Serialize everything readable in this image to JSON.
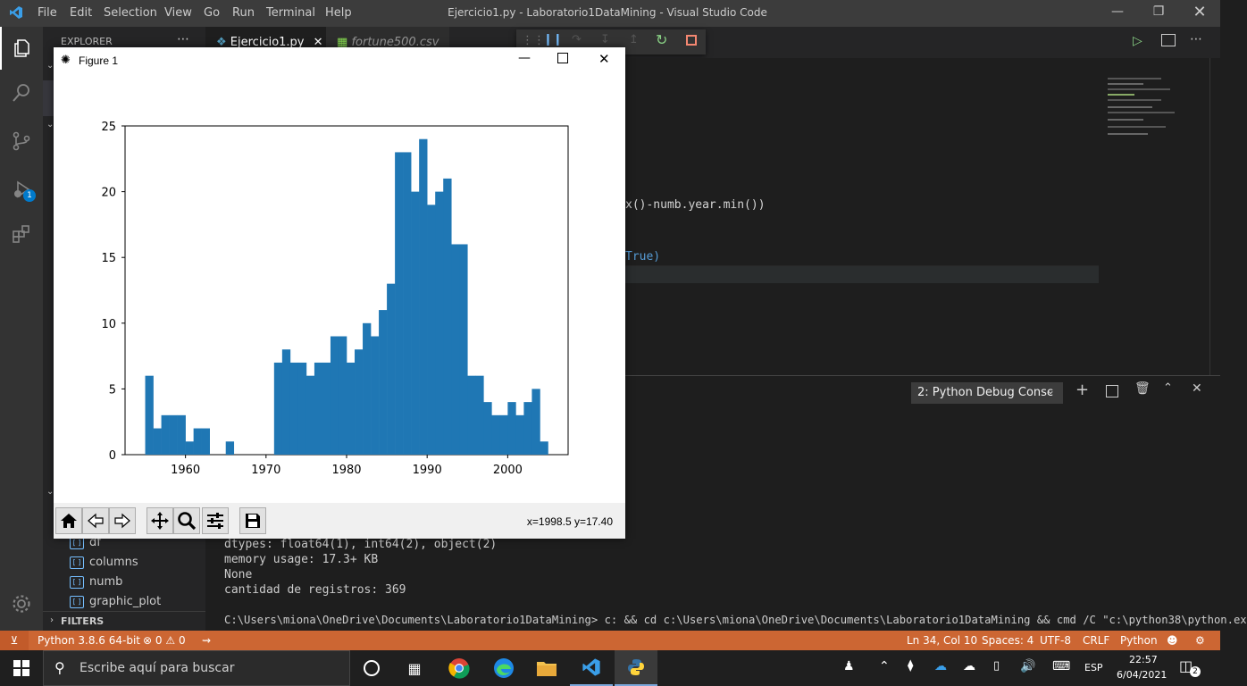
{
  "vscode": {
    "menu": [
      "File",
      "Edit",
      "Selection",
      "View",
      "Go",
      "Run",
      "Terminal",
      "Help"
    ],
    "window_title": "Ejercicio1.py - Laboratorio1DataMining - Visual Studio Code",
    "explorer_label": "EXPLORER",
    "tabs": [
      {
        "label": "Ejercicio1.py"
      },
      {
        "label": "fortune500.csv"
      }
    ],
    "code_fragments": [
      "x()-numb.year.min())",
      "True)"
    ],
    "outline": [
      "df",
      "columns",
      "numb",
      "graphic_plot"
    ],
    "filters_label": "FILTERS",
    "debug_badge": "1",
    "panel_dropdown": "2: Python Debug Consc",
    "terminal_lines": [
      "dtypes: float64(1), int64(2), object(2)",
      "memory usage: 17.3+ KB",
      "None",
      "cantidad de registros: 369",
      "",
      "C:\\Users\\miona\\OneDrive\\Documents\\Laboratorio1DataMining> c: && cd c:\\Users\\miona\\OneDrive\\Documents\\Laboratorio1DataMining && cmd /C \"c:\\python38\\python.ex"
    ]
  },
  "status": {
    "python": "Python 3.8.6 64-bit",
    "errors": "0",
    "warnings": "0",
    "position": "Ln 34, Col 10",
    "spaces": "Spaces: 4",
    "encoding": "UTF-8",
    "eol": "CRLF",
    "language": "Python"
  },
  "taskbar": {
    "search_placeholder": "Escribe aquí para buscar",
    "lang": "ESP",
    "time": "22:57",
    "date": "6/04/2021",
    "notif_count": "2"
  },
  "figure": {
    "window_title": "Figure 1",
    "coord_readout": "x=1998.5 y=17.40"
  },
  "chart_data": {
    "type": "bar",
    "title": "",
    "xlabel": "",
    "ylabel": "",
    "xlim": [
      1952.5,
      2007.5
    ],
    "ylim": [
      0,
      25
    ],
    "xticks": [
      1960,
      1970,
      1980,
      1990,
      2000
    ],
    "yticks": [
      0,
      5,
      10,
      15,
      20,
      25
    ],
    "bin_width": 1,
    "x": [
      1955,
      1956,
      1957,
      1958,
      1959,
      1960,
      1961,
      1962,
      1963,
      1964,
      1965,
      1966,
      1967,
      1968,
      1969,
      1970,
      1971,
      1972,
      1973,
      1974,
      1975,
      1976,
      1977,
      1978,
      1979,
      1980,
      1981,
      1982,
      1983,
      1984,
      1985,
      1986,
      1987,
      1988,
      1989,
      1990,
      1991,
      1992,
      1993,
      1994,
      1995,
      1996,
      1997,
      1998,
      1999,
      2000,
      2001,
      2002,
      2003,
      2004,
      2005
    ],
    "values": [
      6,
      2,
      3,
      3,
      3,
      1,
      2,
      2,
      0,
      0,
      1,
      0,
      0,
      0,
      0,
      0,
      7,
      8,
      7,
      7,
      6,
      7,
      7,
      9,
      9,
      7,
      8,
      10,
      9,
      11,
      13,
      23,
      23,
      20,
      24,
      19,
      20,
      21,
      16,
      16,
      6,
      6,
      4,
      3,
      3,
      4,
      3,
      4,
      5,
      1,
      0
    ]
  }
}
